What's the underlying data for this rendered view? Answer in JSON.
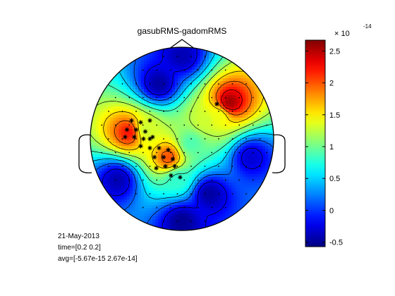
{
  "chart_data": {
    "type": "heatmap",
    "subtype": "EEG topographic scalp map",
    "title": "gasubRMS-gadomRMS",
    "colorbar": {
      "exponent_label": "× 10",
      "exponent": "-14",
      "min": -0.57,
      "max": 2.67,
      "ticks": [
        2.5,
        2,
        1.5,
        1,
        0.5,
        0,
        -0.5
      ],
      "tick_labels": [
        "2.5",
        "2",
        "1.5",
        "1",
        "0.5",
        "0",
        "-0.5"
      ],
      "colormap": "jet"
    },
    "sources": [
      {
        "u": -0.58,
        "v": -0.07,
        "value": 2.2
      },
      {
        "u": -0.4,
        "v": -0.1,
        "value": 1.3
      },
      {
        "u": -0.15,
        "v": 0.2,
        "value": 2.0
      },
      {
        "u": 0.1,
        "v": 0.05,
        "value": 0.9
      },
      {
        "u": 0.25,
        "v": -0.2,
        "value": 1.3
      },
      {
        "u": 0.52,
        "v": -0.4,
        "value": 2.55
      },
      {
        "u": 0.4,
        "v": -0.25,
        "value": 1.4
      },
      {
        "u": -0.05,
        "v": 0.45,
        "value": 0.8
      },
      {
        "u": -0.25,
        "v": -0.6,
        "value": -0.45
      },
      {
        "u": 0.3,
        "v": 0.6,
        "value": -0.45
      },
      {
        "u": -0.7,
        "v": 0.45,
        "value": -0.4
      },
      {
        "u": 0.75,
        "v": 0.2,
        "value": -0.3
      },
      {
        "u": 0.0,
        "v": -0.9,
        "value": -0.4
      },
      {
        "u": 0.0,
        "v": 0.9,
        "value": -0.5
      }
    ],
    "significant_electrodes": [
      [
        -0.55,
        -0.2
      ],
      [
        -0.45,
        -0.18
      ],
      [
        -0.6,
        -0.1
      ],
      [
        -0.5,
        -0.1
      ],
      [
        -0.4,
        -0.08
      ],
      [
        -0.62,
        -0.02
      ],
      [
        -0.52,
        -0.02
      ],
      [
        -0.42,
        0.0
      ],
      [
        -0.32,
        -0.02
      ],
      [
        -0.45,
        0.08
      ],
      [
        -0.35,
        0.1
      ],
      [
        -0.25,
        0.1
      ],
      [
        -0.3,
        0.2
      ],
      [
        -0.2,
        0.2
      ],
      [
        -0.1,
        0.22
      ],
      [
        -0.28,
        0.32
      ],
      [
        -0.18,
        0.3
      ],
      [
        -0.08,
        0.3
      ],
      [
        -0.12,
        0.4
      ],
      [
        -0.02,
        0.42
      ],
      [
        -0.35,
        -0.2
      ],
      [
        -0.15,
        0.12
      ],
      [
        -0.35,
        0.0
      ],
      [
        0.38,
        -0.38
      ]
    ]
  },
  "info": {
    "date": "21-May-2013",
    "time": "time=[0.2 0.2]",
    "avg": "avg=[-5.67e-15 2.67e-14]"
  }
}
